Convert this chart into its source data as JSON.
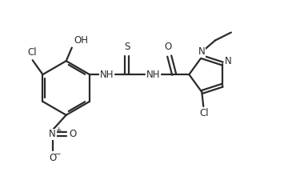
{
  "bg_color": "#ffffff",
  "line_color": "#2a2a2a",
  "line_width": 1.6,
  "font_size": 8.5,
  "fig_width": 3.8,
  "fig_height": 2.2,
  "dpi": 100,
  "xlim": [
    0,
    9.5
  ],
  "ylim": [
    0,
    5.5
  ]
}
